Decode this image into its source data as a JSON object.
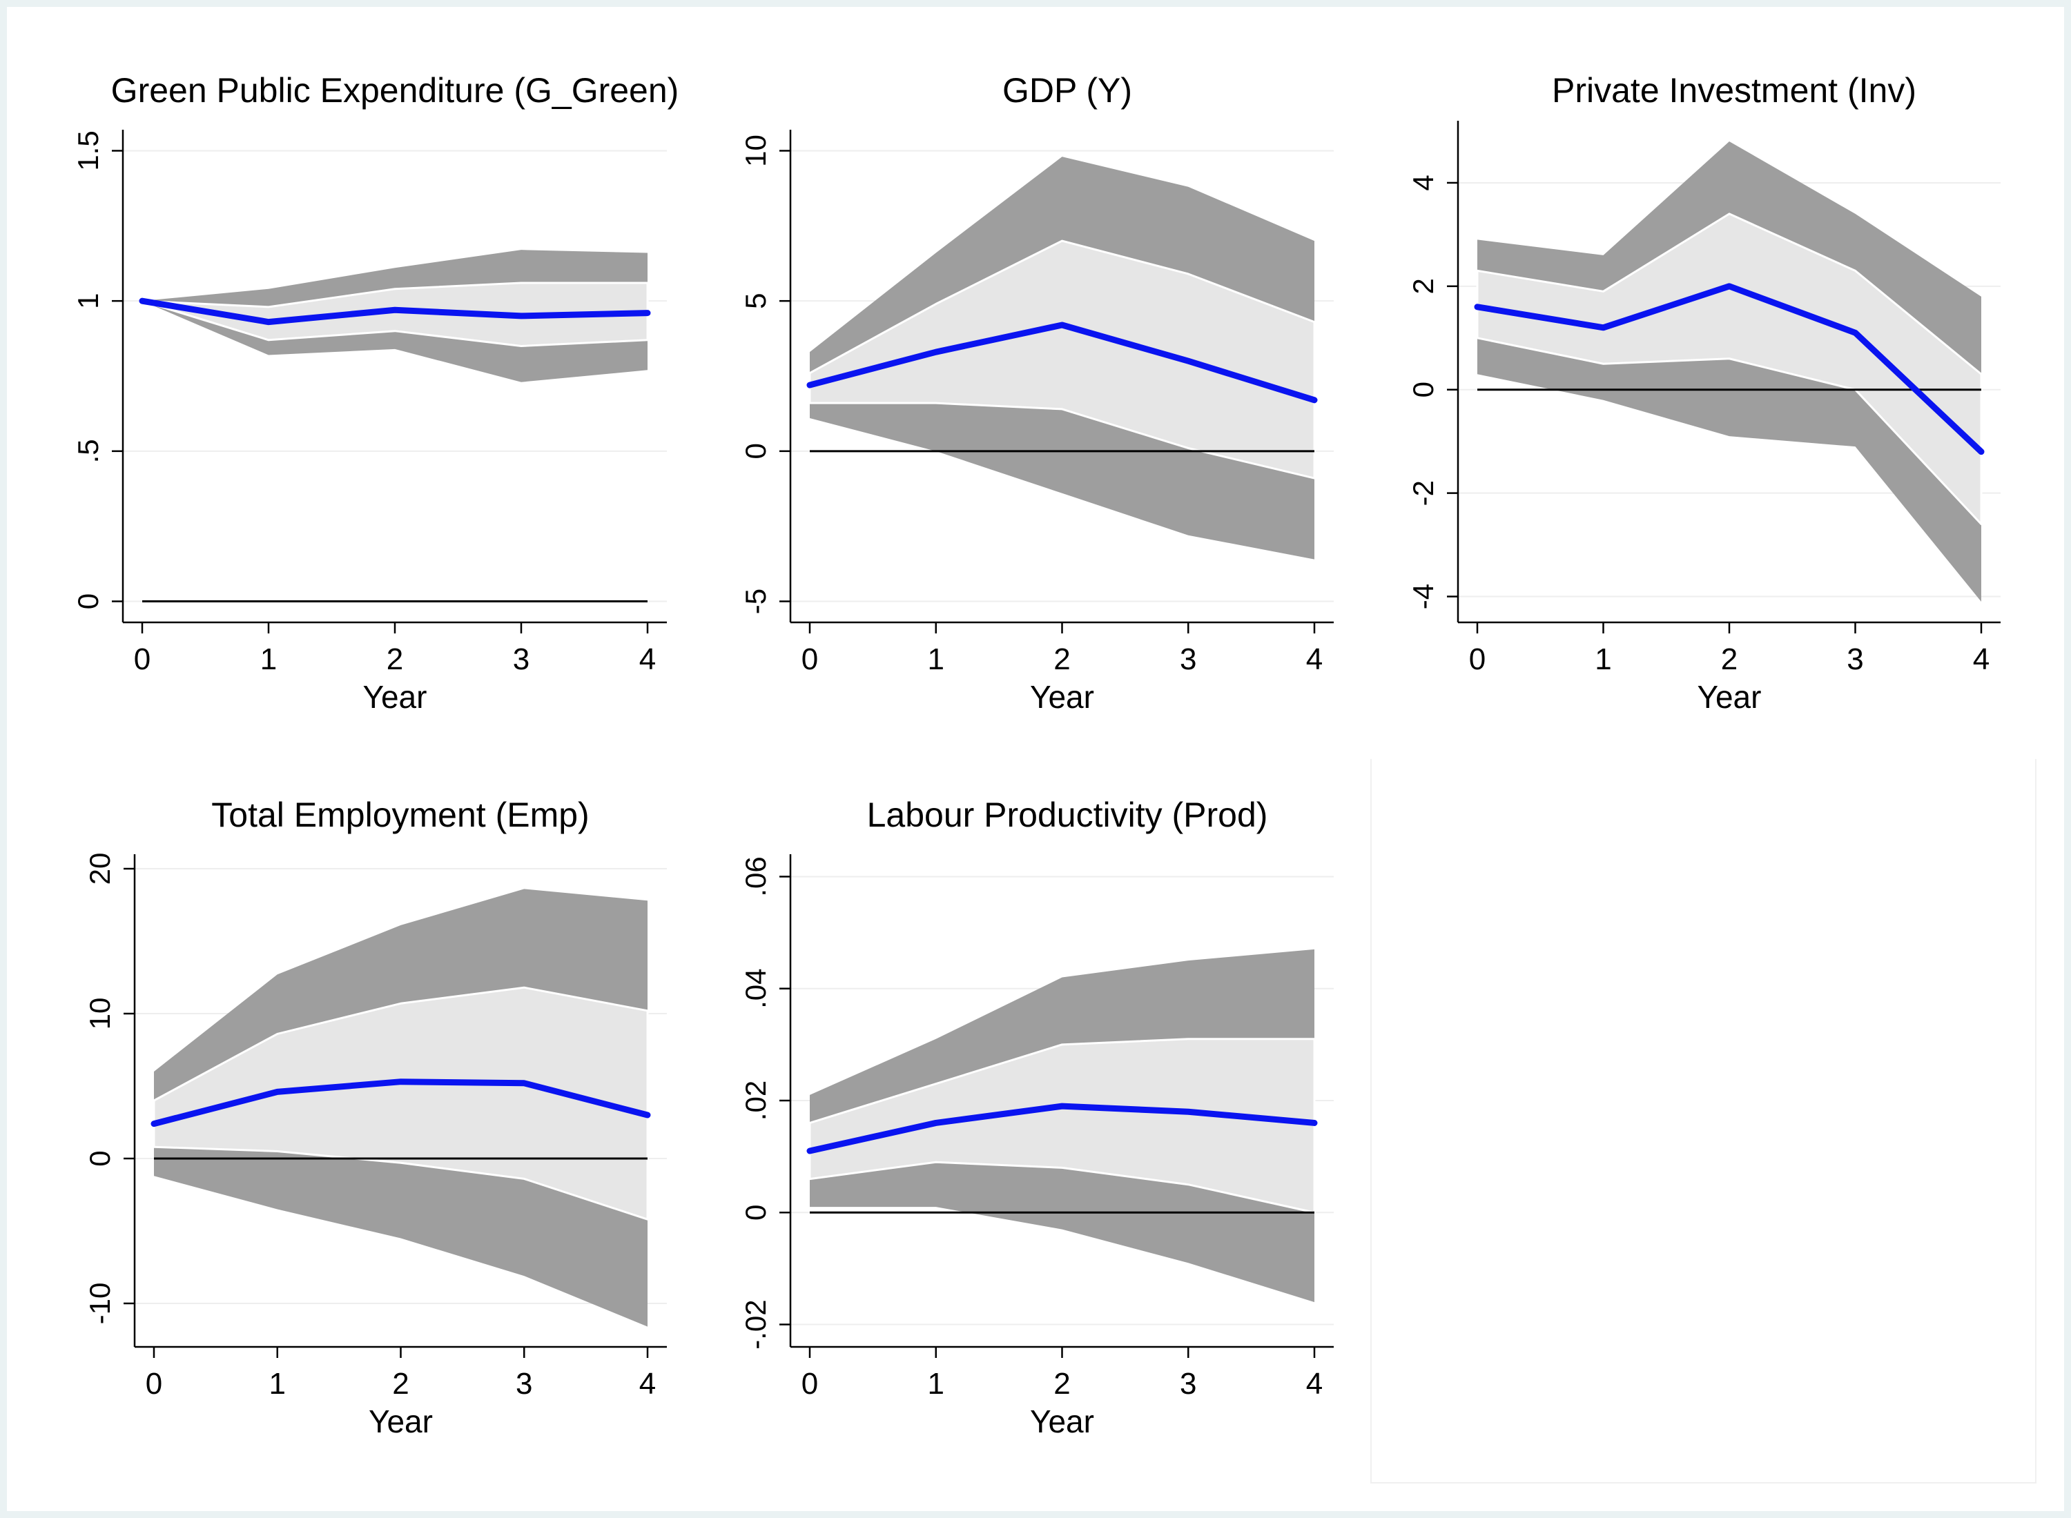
{
  "colors": {
    "irf_line": "#0a14f0",
    "outer_band": "#9e9e9e",
    "inner_band": "#e6e6e6",
    "band_edge": "#ffffff",
    "zero_line": "#000000",
    "gridline": "#eeeeee",
    "background": "#ffffff"
  },
  "chart_data": [
    {
      "type": "area",
      "title": "Green Public Expenditure (G_Green)",
      "xlabel": "Year",
      "x": [
        0,
        1,
        2,
        3,
        4
      ],
      "xticks": [
        "0",
        "1",
        "2",
        "3",
        "4"
      ],
      "yticks": [
        0,
        0.5,
        1,
        1.5
      ],
      "ytick_labels": [
        "0",
        ".5",
        "1",
        "1.5"
      ],
      "ylim": [
        -0.07,
        1.57
      ],
      "zero_line": true,
      "series": [
        {
          "role": "outer_upper",
          "values": [
            1.0,
            1.04,
            1.11,
            1.17,
            1.16
          ]
        },
        {
          "role": "inner_upper",
          "values": [
            1.0,
            0.98,
            1.04,
            1.06,
            1.06
          ]
        },
        {
          "role": "irf",
          "values": [
            1.0,
            0.93,
            0.97,
            0.95,
            0.96
          ]
        },
        {
          "role": "inner_lower",
          "values": [
            1.0,
            0.87,
            0.9,
            0.85,
            0.87
          ]
        },
        {
          "role": "outer_lower",
          "values": [
            1.0,
            0.82,
            0.84,
            0.73,
            0.77
          ]
        }
      ]
    },
    {
      "type": "area",
      "title": "GDP (Y)",
      "xlabel": "Year",
      "x": [
        0,
        1,
        2,
        3,
        4
      ],
      "xticks": [
        "0",
        "1",
        "2",
        "3",
        "4"
      ],
      "yticks": [
        -5,
        0,
        5,
        10
      ],
      "ytick_labels": [
        "-5",
        "0",
        "5",
        "10"
      ],
      "ylim": [
        -5.7,
        10.7
      ],
      "zero_line": true,
      "series": [
        {
          "role": "outer_upper",
          "values": [
            3.3,
            6.6,
            9.8,
            8.8,
            7.0
          ]
        },
        {
          "role": "inner_upper",
          "values": [
            2.6,
            4.9,
            7.0,
            5.9,
            4.3
          ]
        },
        {
          "role": "irf",
          "values": [
            2.2,
            3.3,
            4.2,
            3.0,
            1.7
          ]
        },
        {
          "role": "inner_lower",
          "values": [
            1.6,
            1.6,
            1.4,
            0.1,
            -0.9
          ]
        },
        {
          "role": "outer_lower",
          "values": [
            1.1,
            0.0,
            -1.4,
            -2.8,
            -3.6
          ]
        }
      ]
    },
    {
      "type": "area",
      "title": "Private Investment (Inv)",
      "xlabel": "Year",
      "x": [
        0,
        1,
        2,
        3,
        4
      ],
      "xticks": [
        "0",
        "1",
        "2",
        "3",
        "4"
      ],
      "yticks": [
        -4,
        -2,
        0,
        2,
        4
      ],
      "ytick_labels": [
        "-4",
        "-2",
        "0",
        "2",
        "4"
      ],
      "ylim": [
        -4.5,
        5.2
      ],
      "zero_line": true,
      "series": [
        {
          "role": "outer_upper",
          "values": [
            2.9,
            2.6,
            4.8,
            3.4,
            1.8
          ]
        },
        {
          "role": "inner_upper",
          "values": [
            2.3,
            1.9,
            3.4,
            2.3,
            0.3
          ]
        },
        {
          "role": "irf",
          "values": [
            1.6,
            1.2,
            2.0,
            1.1,
            -1.2
          ]
        },
        {
          "role": "inner_lower",
          "values": [
            1.0,
            0.5,
            0.6,
            0.0,
            -2.6
          ]
        },
        {
          "role": "outer_lower",
          "values": [
            0.3,
            -0.2,
            -0.9,
            -1.1,
            -4.1
          ]
        }
      ]
    },
    {
      "type": "area",
      "title": "Total Employment (Emp)",
      "xlabel": "Year",
      "x": [
        0,
        1,
        2,
        3,
        4
      ],
      "xticks": [
        "0",
        "1",
        "2",
        "3",
        "4"
      ],
      "yticks": [
        -10,
        0,
        10,
        20
      ],
      "ytick_labels": [
        "-10",
        "0",
        "10",
        "20"
      ],
      "ylim": [
        -13.0,
        21.0
      ],
      "zero_line": true,
      "series": [
        {
          "role": "outer_upper",
          "values": [
            6.0,
            12.7,
            16.1,
            18.6,
            17.8
          ]
        },
        {
          "role": "inner_upper",
          "values": [
            4.0,
            8.6,
            10.7,
            11.8,
            10.2
          ]
        },
        {
          "role": "irf",
          "values": [
            2.4,
            4.6,
            5.3,
            5.2,
            3.0
          ]
        },
        {
          "role": "inner_lower",
          "values": [
            0.8,
            0.5,
            -0.3,
            -1.4,
            -4.2
          ]
        },
        {
          "role": "outer_lower",
          "values": [
            -1.2,
            -3.5,
            -5.5,
            -8.1,
            -11.6
          ]
        }
      ]
    },
    {
      "type": "area",
      "title": "Labour Productivity (Prod)",
      "xlabel": "Year",
      "x": [
        0,
        1,
        2,
        3,
        4
      ],
      "xticks": [
        "0",
        "1",
        "2",
        "3",
        "4"
      ],
      "yticks": [
        -0.02,
        0,
        0.02,
        0.04,
        0.06
      ],
      "ytick_labels": [
        "-.02",
        "0",
        ".02",
        ".04",
        ".06"
      ],
      "ylim": [
        -0.024,
        0.064
      ],
      "zero_line": true,
      "series": [
        {
          "role": "outer_upper",
          "values": [
            0.021,
            0.031,
            0.042,
            0.045,
            0.047
          ]
        },
        {
          "role": "inner_upper",
          "values": [
            0.016,
            0.023,
            0.03,
            0.031,
            0.031
          ]
        },
        {
          "role": "irf",
          "values": [
            0.011,
            0.016,
            0.019,
            0.018,
            0.016
          ]
        },
        {
          "role": "inner_lower",
          "values": [
            0.006,
            0.009,
            0.008,
            0.005,
            0.0
          ]
        },
        {
          "role": "outer_lower",
          "values": [
            0.001,
            0.001,
            -0.003,
            -0.009,
            -0.016
          ]
        }
      ]
    }
  ]
}
